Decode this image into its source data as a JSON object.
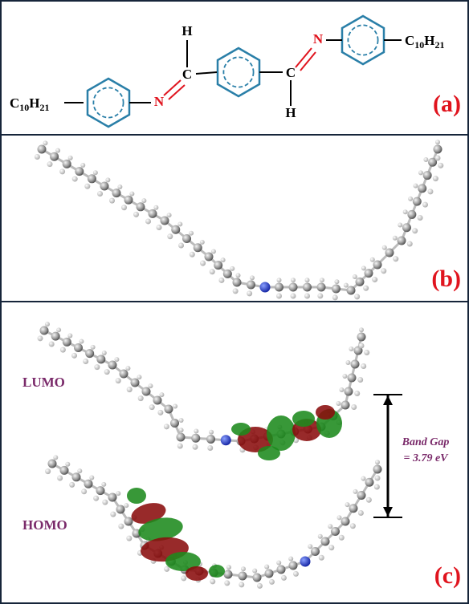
{
  "panels": [
    {
      "label": "(a)",
      "structure": {
        "h_top": "H",
        "c_left": "C",
        "n_left": "N",
        "c_right": "C",
        "h_bottom": "H",
        "n_right": "N",
        "alkyl_left": [
          "C",
          "10",
          "H",
          "21"
        ],
        "alkyl_right": [
          "C",
          "10",
          "H",
          "21"
        ]
      }
    },
    {
      "label": "(b)"
    },
    {
      "label": "(c)",
      "lumo": "LUMO",
      "homo": "HOMO",
      "band_gap": [
        "Band Gap",
        "= 3.79 eV"
      ]
    }
  ]
}
